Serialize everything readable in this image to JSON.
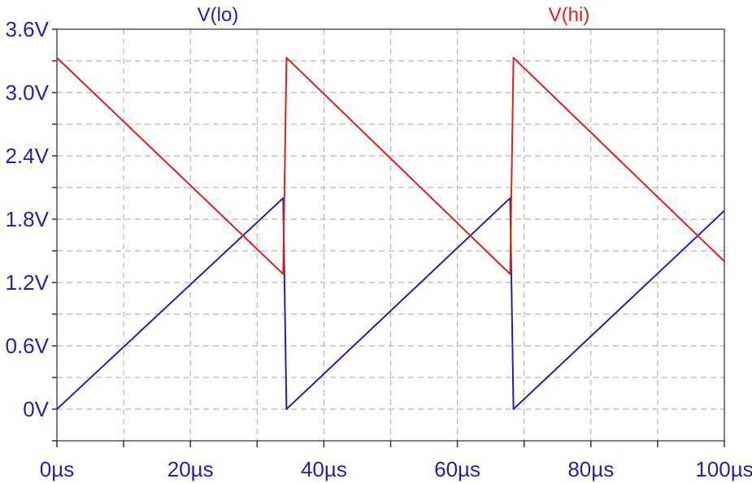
{
  "chart_data": {
    "type": "line",
    "x_unit": "µs",
    "y_unit": "V",
    "xlim": [
      0,
      100
    ],
    "ylim": [
      -0.3,
      3.6
    ],
    "grid": true,
    "legend_position": "top",
    "x_ticks": [
      {
        "value": 0,
        "label": "0µs"
      },
      {
        "value": 20,
        "label": "20µs"
      },
      {
        "value": 40,
        "label": "40µs"
      },
      {
        "value": 60,
        "label": "60µs"
      },
      {
        "value": 80,
        "label": "80µs"
      },
      {
        "value": 100,
        "label": "100µs"
      }
    ],
    "y_ticks": [
      {
        "value": 0,
        "label": "0V"
      },
      {
        "value": 0.6,
        "label": "0.6V"
      },
      {
        "value": 1.2,
        "label": "1.2V"
      },
      {
        "value": 1.8,
        "label": "1.8V"
      },
      {
        "value": 2.4,
        "label": "2.4V"
      },
      {
        "value": 3.0,
        "label": "3.0V"
      },
      {
        "value": 3.6,
        "label": "3.6V"
      }
    ],
    "series": [
      {
        "name": "V(lo)",
        "color": "#2a1fa8",
        "points": [
          [
            0,
            0
          ],
          [
            33.9,
            2.0
          ],
          [
            34.4,
            0
          ],
          [
            67.9,
            2.0
          ],
          [
            68.4,
            0
          ],
          [
            100,
            1.88
          ]
        ]
      },
      {
        "name": "V(hi)",
        "color": "#e02020",
        "points": [
          [
            0,
            3.33
          ],
          [
            33.9,
            1.28
          ],
          [
            34.4,
            3.33
          ],
          [
            67.9,
            1.28
          ],
          [
            68.4,
            3.33
          ],
          [
            100,
            1.4
          ]
        ]
      }
    ]
  }
}
